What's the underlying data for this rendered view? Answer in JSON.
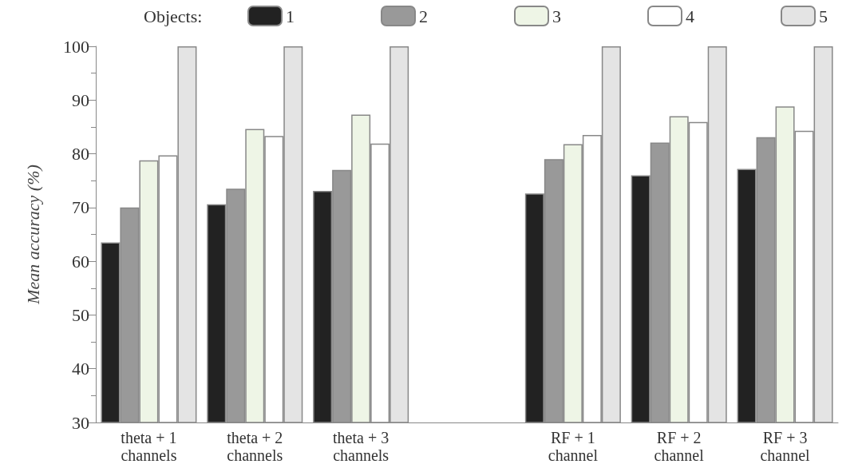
{
  "chart_data": {
    "type": "bar",
    "ylabel": "Mean accuracy (%)",
    "legend_title": "Objects:",
    "legend": "top",
    "categories": [
      "theta + 1\nchannels",
      "theta + 2\nchannels",
      "theta + 3\nchannels",
      null,
      "RF + 1\nchannel",
      "RF + 2\nchannel",
      "RF + 3\nchannel"
    ],
    "series": [
      {
        "name": "1",
        "color": "#222222",
        "values": [
          63.5,
          70.6,
          73.1,
          null,
          72.6,
          76,
          77.2
        ]
      },
      {
        "name": "2",
        "color": "#999999",
        "values": [
          70,
          73.5,
          77,
          null,
          79,
          82.1,
          83.1
        ]
      },
      {
        "name": "3",
        "color": "#eef5e6",
        "values": [
          78.8,
          84.6,
          87.3,
          null,
          81.8,
          87,
          88.8
        ]
      },
      {
        "name": "4",
        "color": "#ffffff",
        "values": [
          79.7,
          83.3,
          81.9,
          null,
          83.5,
          85.9,
          84.3
        ]
      },
      {
        "name": "5",
        "color": "#e4e4e4",
        "values": [
          100,
          100,
          100,
          null,
          100,
          100,
          100
        ]
      }
    ],
    "ylim": [
      30,
      100
    ],
    "yticks": [
      30,
      40,
      50,
      60,
      70,
      80,
      90,
      100
    ],
    "grid": false
  }
}
